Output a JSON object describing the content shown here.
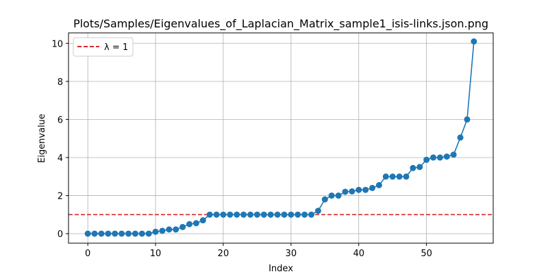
{
  "chart_data": {
    "type": "line",
    "title": "Plots/Samples/Eigenvalues_of_Laplacian_Matrix_sample1_isis-links.json.png",
    "xlabel": "Index",
    "ylabel": "Eigenvalue",
    "xlim": [
      -2.85,
      59.85
    ],
    "ylim": [
      -0.5,
      10.55
    ],
    "xticks": [
      0,
      10,
      20,
      30,
      40,
      50
    ],
    "yticks": [
      0,
      2,
      4,
      6,
      8,
      10
    ],
    "grid": true,
    "legend_position": "top-left",
    "colors": {
      "series": "#1f77b4",
      "reference": "#d62728"
    },
    "series": [
      {
        "name": "",
        "marker": "circle",
        "x": [
          0,
          1,
          2,
          3,
          4,
          5,
          6,
          7,
          8,
          9,
          10,
          11,
          12,
          13,
          14,
          15,
          16,
          17,
          18,
          19,
          20,
          21,
          22,
          23,
          24,
          25,
          26,
          27,
          28,
          29,
          30,
          31,
          32,
          33,
          34,
          35,
          36,
          37,
          38,
          39,
          40,
          41,
          42,
          43,
          44,
          45,
          46,
          47,
          48,
          49,
          50,
          51,
          52,
          53,
          54,
          55,
          56,
          57
        ],
        "y": [
          0,
          0,
          0,
          0,
          0,
          0,
          0,
          0,
          0,
          0,
          0.1,
          0.15,
          0.22,
          0.22,
          0.35,
          0.5,
          0.55,
          0.7,
          1.0,
          1.0,
          1.0,
          1.0,
          1.0,
          1.0,
          1.0,
          1.0,
          1.0,
          1.0,
          1.0,
          1.0,
          1.0,
          1.0,
          1.0,
          1.0,
          1.2,
          1.8,
          2.0,
          2.0,
          2.2,
          2.22,
          2.3,
          2.3,
          2.4,
          2.55,
          3.0,
          3.0,
          3.0,
          3.0,
          3.45,
          3.5,
          3.88,
          4.0,
          4.0,
          4.05,
          4.15,
          5.05,
          6.0,
          10.1
        ]
      }
    ],
    "reference_lines": [
      {
        "orientation": "horizontal",
        "y": 1,
        "style": "dashed",
        "label": "λ = 1"
      }
    ]
  }
}
